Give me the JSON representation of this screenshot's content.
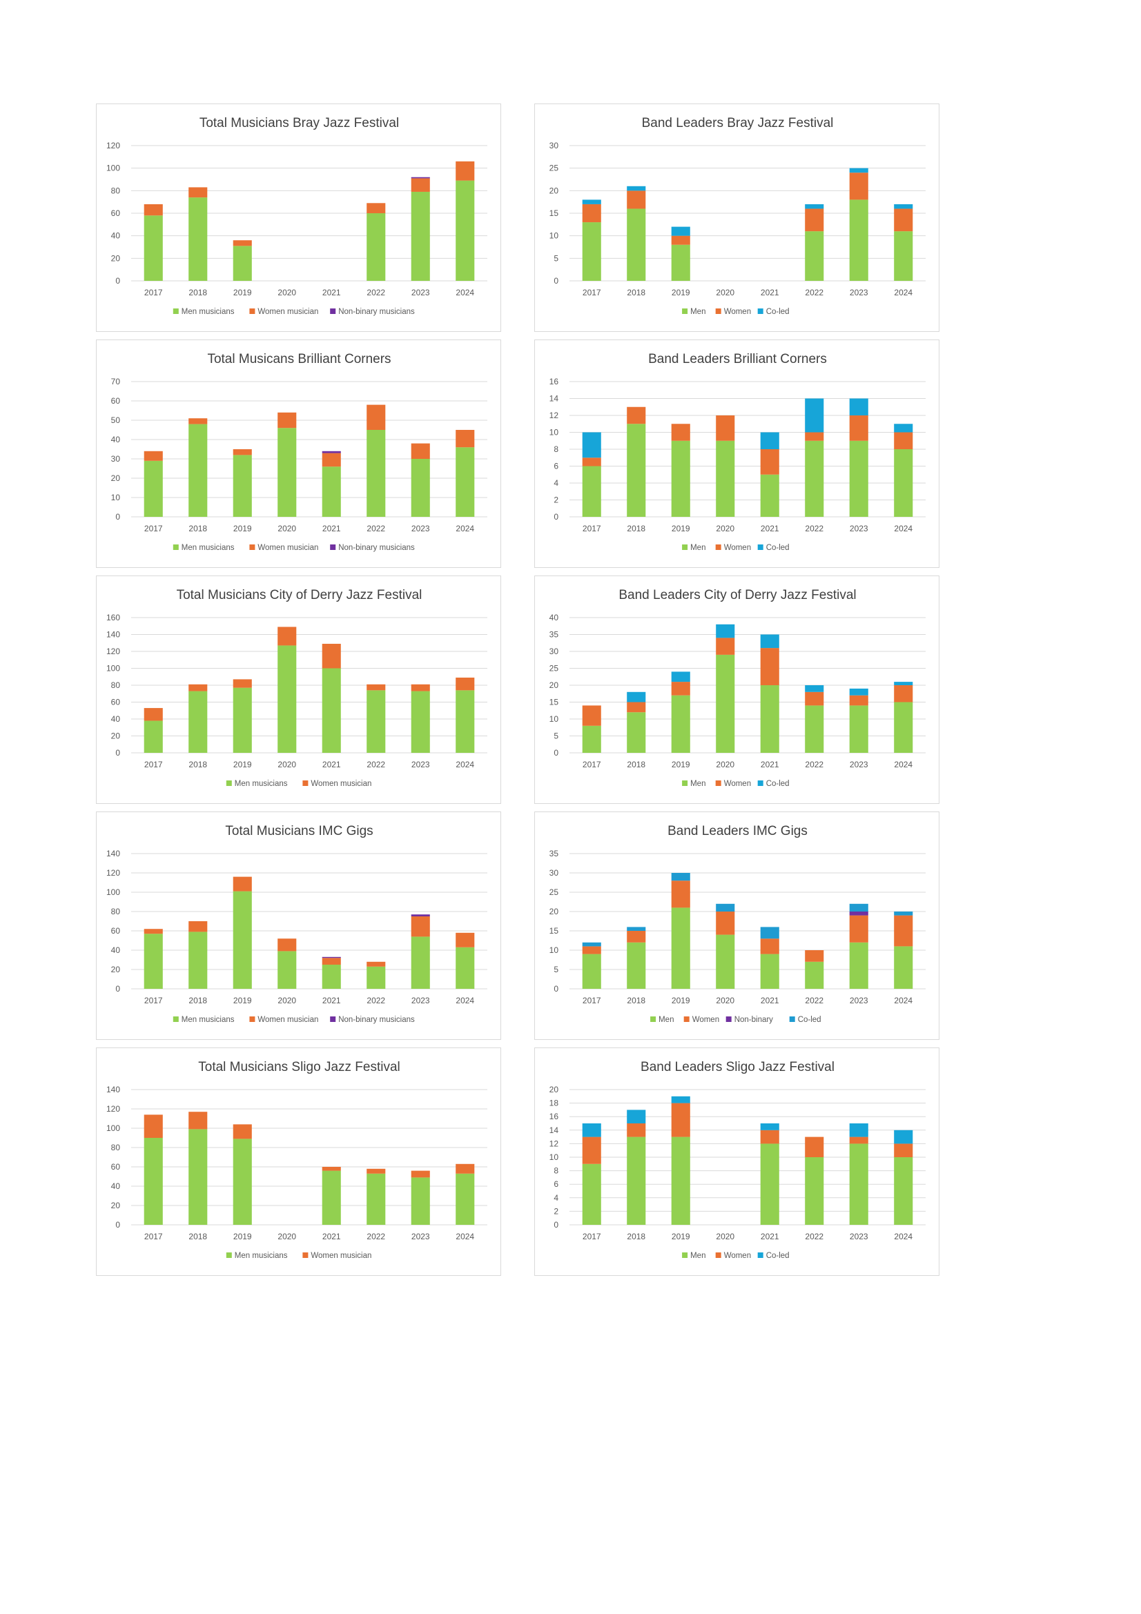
{
  "colors": {
    "men": "#92d050",
    "women": "#e97132",
    "nonbinary": "#7030a0",
    "coled": "#17a5d8",
    "coled_imc": "#1f9bd1",
    "grid": "#d9d9d9",
    "text": "#404040",
    "axis": "#595959"
  },
  "chart_data": [
    {
      "type": "bar",
      "stacked": true,
      "title": "Total Musicians Bray Jazz Festival",
      "categories": [
        "2017",
        "2018",
        "2019",
        "2020",
        "2021",
        "2022",
        "2023",
        "2024"
      ],
      "ylim": [
        0,
        120
      ],
      "yticks": [
        0,
        20,
        40,
        60,
        80,
        100,
        120
      ],
      "series": [
        {
          "name": "Men musicians",
          "color": "men",
          "values": [
            58,
            74,
            31,
            0,
            0,
            60,
            79,
            89
          ]
        },
        {
          "name": "Women musician",
          "color": "women",
          "values": [
            10,
            9,
            5,
            0,
            0,
            9,
            12,
            17
          ]
        },
        {
          "name": "Non-binary musicians",
          "color": "nonbinary",
          "values": [
            0,
            0,
            0,
            0,
            0,
            0,
            1,
            0
          ]
        }
      ]
    },
    {
      "type": "bar",
      "stacked": true,
      "title": "Band Leaders Bray Jazz Festival",
      "categories": [
        "2017",
        "2018",
        "2019",
        "2020",
        "2021",
        "2022",
        "2023",
        "2024"
      ],
      "ylim": [
        0,
        30
      ],
      "yticks": [
        0,
        5,
        10,
        15,
        20,
        25,
        30
      ],
      "series": [
        {
          "name": "Men",
          "color": "men",
          "values": [
            13,
            16,
            8,
            0,
            0,
            11,
            18,
            11
          ]
        },
        {
          "name": "Women",
          "color": "women",
          "values": [
            4,
            4,
            2,
            0,
            0,
            5,
            6,
            5
          ]
        },
        {
          "name": "Co-led",
          "color": "coled",
          "values": [
            1,
            1,
            2,
            0,
            0,
            1,
            1,
            1
          ]
        }
      ]
    },
    {
      "type": "bar",
      "stacked": true,
      "title": "Total Musicans Brilliant Corners",
      "categories": [
        "2017",
        "2018",
        "2019",
        "2020",
        "2021",
        "2022",
        "2023",
        "2024"
      ],
      "ylim": [
        0,
        70
      ],
      "yticks": [
        0,
        10,
        20,
        30,
        40,
        50,
        60,
        70
      ],
      "series": [
        {
          "name": "Men musicians",
          "color": "men",
          "values": [
            29,
            48,
            32,
            46,
            26,
            45,
            30,
            36
          ]
        },
        {
          "name": "Women musician",
          "color": "women",
          "values": [
            5,
            3,
            3,
            8,
            7,
            13,
            8,
            9
          ]
        },
        {
          "name": "Non-binary musicians",
          "color": "nonbinary",
          "values": [
            0,
            0,
            0,
            0,
            1,
            0,
            0,
            0
          ]
        }
      ]
    },
    {
      "type": "bar",
      "stacked": true,
      "title": "Band Leaders Brilliant Corners",
      "categories": [
        "2017",
        "2018",
        "2019",
        "2020",
        "2021",
        "2022",
        "2023",
        "2024"
      ],
      "ylim": [
        0,
        16
      ],
      "yticks": [
        0,
        2,
        4,
        6,
        8,
        10,
        12,
        14,
        16
      ],
      "series": [
        {
          "name": "Men",
          "color": "men",
          "values": [
            6,
            11,
            9,
            9,
            5,
            9,
            9,
            8
          ]
        },
        {
          "name": "Women",
          "color": "women",
          "values": [
            1,
            2,
            2,
            3,
            3,
            1,
            3,
            2
          ]
        },
        {
          "name": "Co-led",
          "color": "coled",
          "values": [
            3,
            0,
            0,
            0,
            2,
            4,
            2,
            1
          ]
        }
      ]
    },
    {
      "type": "bar",
      "stacked": true,
      "title": "Total Musicians City of Derry Jazz Festival",
      "categories": [
        "2017",
        "2018",
        "2019",
        "2020",
        "2021",
        "2022",
        "2023",
        "2024"
      ],
      "ylim": [
        0,
        160
      ],
      "yticks": [
        0,
        20,
        40,
        60,
        80,
        100,
        120,
        140,
        160
      ],
      "series": [
        {
          "name": "Men musicians",
          "color": "men",
          "values": [
            38,
            73,
            77,
            127,
            100,
            74,
            73,
            74
          ]
        },
        {
          "name": "Women musician",
          "color": "women",
          "values": [
            15,
            8,
            10,
            22,
            29,
            7,
            8,
            15
          ]
        }
      ]
    },
    {
      "type": "bar",
      "stacked": true,
      "title": "Band Leaders City of Derry Jazz Festival",
      "categories": [
        "2017",
        "2018",
        "2019",
        "2020",
        "2021",
        "2022",
        "2023",
        "2024"
      ],
      "ylim": [
        0,
        40
      ],
      "yticks": [
        0,
        5,
        10,
        15,
        20,
        25,
        30,
        35,
        40
      ],
      "series": [
        {
          "name": "Men",
          "color": "men",
          "values": [
            8,
            12,
            17,
            29,
            20,
            14,
            14,
            15
          ]
        },
        {
          "name": "Women",
          "color": "women",
          "values": [
            6,
            3,
            4,
            5,
            11,
            4,
            3,
            5
          ]
        },
        {
          "name": "Co-led",
          "color": "coled",
          "values": [
            0,
            3,
            3,
            4,
            4,
            2,
            2,
            1
          ]
        }
      ]
    },
    {
      "type": "bar",
      "stacked": true,
      "title": "Total Musicians IMC Gigs",
      "categories": [
        "2017",
        "2018",
        "2019",
        "2020",
        "2021",
        "2022",
        "2023",
        "2024"
      ],
      "ylim": [
        0,
        140
      ],
      "yticks": [
        0,
        20,
        40,
        60,
        80,
        100,
        120,
        140
      ],
      "series": [
        {
          "name": "Men musicians",
          "color": "men",
          "values": [
            57,
            59,
            101,
            39,
            25,
            23,
            54,
            43
          ]
        },
        {
          "name": "Women musician",
          "color": "women",
          "values": [
            5,
            11,
            15,
            13,
            7,
            5,
            21,
            15
          ]
        },
        {
          "name": "Non-binary musicians",
          "color": "nonbinary",
          "values": [
            0,
            0,
            0,
            0,
            1,
            0,
            2,
            0
          ]
        }
      ]
    },
    {
      "type": "bar",
      "stacked": true,
      "title": "Band Leaders IMC Gigs",
      "categories": [
        "2017",
        "2018",
        "2019",
        "2020",
        "2021",
        "2022",
        "2023",
        "2024"
      ],
      "ylim": [
        0,
        35
      ],
      "yticks": [
        0,
        5,
        10,
        15,
        20,
        25,
        30,
        35
      ],
      "series": [
        {
          "name": "Men",
          "color": "men",
          "values": [
            9,
            12,
            21,
            14,
            9,
            7,
            12,
            11
          ]
        },
        {
          "name": "Women",
          "color": "women",
          "values": [
            2,
            3,
            7,
            6,
            4,
            3,
            7,
            8
          ]
        },
        {
          "name": "Non-binary",
          "color": "nonbinary",
          "values": [
            0,
            0,
            0,
            0,
            0,
            0,
            1,
            0
          ]
        },
        {
          "name": "Co-led",
          "color": "coled_imc",
          "values": [
            1,
            1,
            2,
            2,
            3,
            0,
            2,
            1
          ]
        }
      ]
    },
    {
      "type": "bar",
      "stacked": true,
      "title": "Total Musicians Sligo Jazz Festival",
      "categories": [
        "2017",
        "2018",
        "2019",
        "2020",
        "2021",
        "2022",
        "2023",
        "2024"
      ],
      "ylim": [
        0,
        140
      ],
      "yticks": [
        0,
        20,
        40,
        60,
        80,
        100,
        120,
        140
      ],
      "series": [
        {
          "name": "Men musicians",
          "color": "men",
          "values": [
            90,
            99,
            89,
            0,
            56,
            53,
            49,
            53
          ]
        },
        {
          "name": "Women musician",
          "color": "women",
          "values": [
            24,
            18,
            15,
            0,
            4,
            5,
            7,
            10
          ]
        }
      ]
    },
    {
      "type": "bar",
      "stacked": true,
      "title": "Band Leaders Sligo Jazz Festival",
      "categories": [
        "2017",
        "2018",
        "2019",
        "2020",
        "2021",
        "2022",
        "2023",
        "2024"
      ],
      "ylim": [
        0,
        20
      ],
      "yticks": [
        0,
        2,
        4,
        6,
        8,
        10,
        12,
        14,
        16,
        18,
        20
      ],
      "series": [
        {
          "name": "Men",
          "color": "men",
          "values": [
            9,
            13,
            13,
            0,
            12,
            10,
            12,
            10
          ]
        },
        {
          "name": "Women",
          "color": "women",
          "values": [
            4,
            2,
            5,
            0,
            2,
            3,
            1,
            2
          ]
        },
        {
          "name": "Co-led",
          "color": "coled",
          "values": [
            2,
            2,
            1,
            0,
            1,
            0,
            2,
            2
          ]
        }
      ]
    }
  ]
}
